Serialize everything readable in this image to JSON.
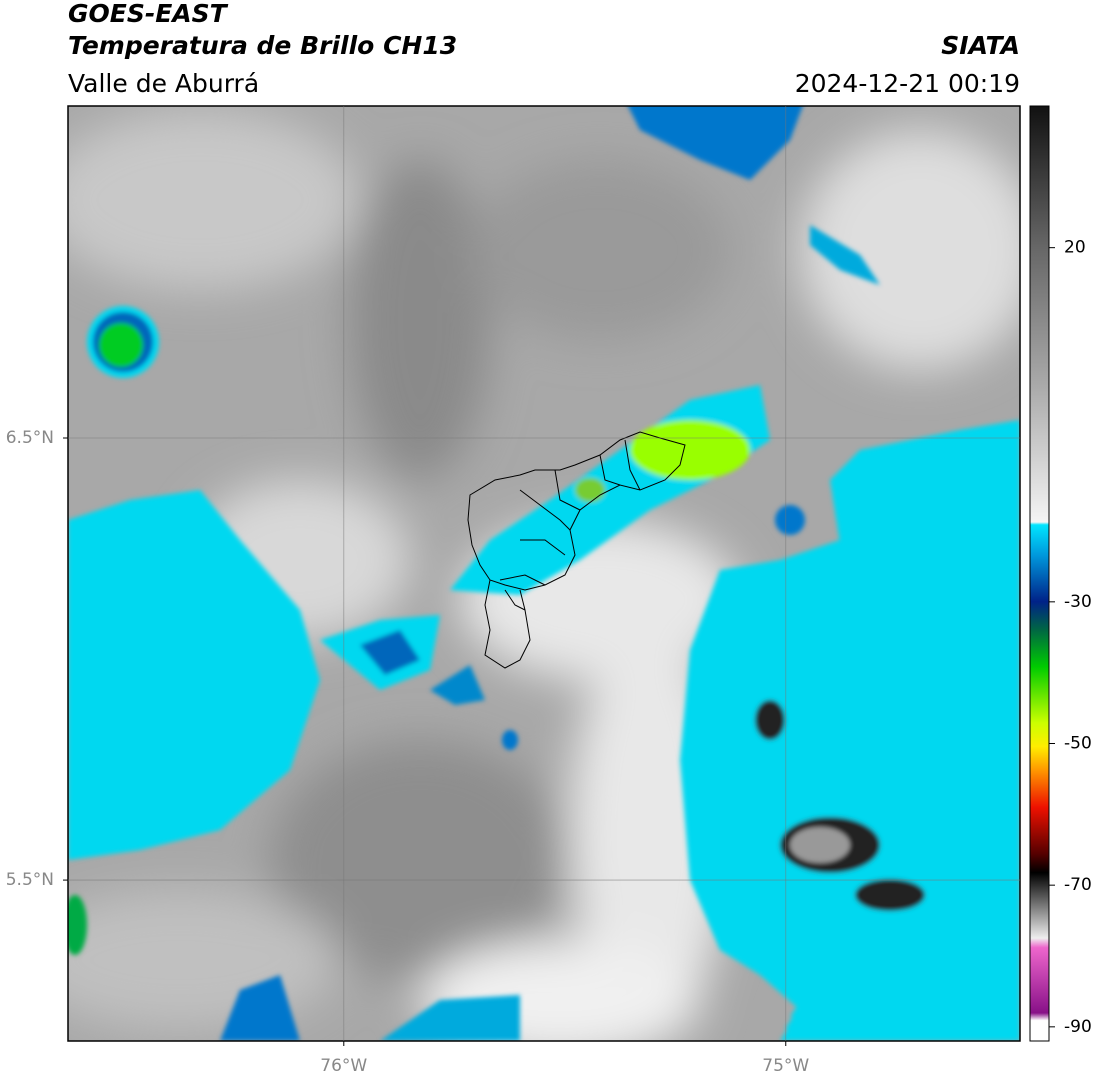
{
  "header": {
    "title": "GOES-EAST",
    "subtitle": "Temperatura de Brillo CH13",
    "region": "Valle de Aburrá",
    "source": "SIATA",
    "timestamp": "2024-12-21 00:19"
  },
  "map": {
    "xlim": [
      -76.624,
      -74.47
    ],
    "ylim": [
      5.136,
      7.251
    ],
    "xticks": [
      {
        "value": -76,
        "label": "76°W"
      },
      {
        "value": -75,
        "label": "75°W"
      }
    ],
    "yticks": [
      {
        "value": 6.5,
        "label": "6.5°N"
      },
      {
        "value": 5.5,
        "label": "5.5°N"
      }
    ],
    "grid": true
  },
  "colorbar": {
    "range": [
      -92,
      40
    ],
    "ticks": [
      20,
      -30,
      -50,
      -70,
      -90
    ]
  }
}
